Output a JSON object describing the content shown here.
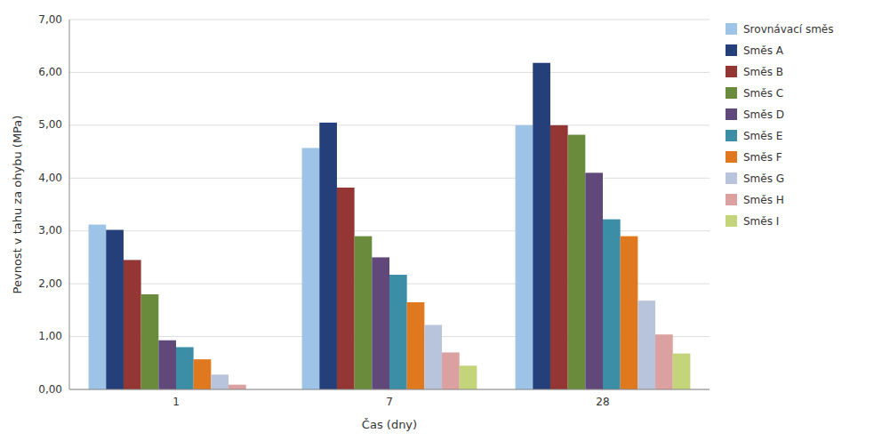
{
  "chart_data": {
    "type": "bar",
    "xlabel": "Čas (dny)",
    "ylabel": "Pevnost v tahu za ohybu (MPa)",
    "categories": [
      1,
      7,
      28
    ],
    "series": [
      {
        "name": "Srovnávací směs",
        "color": "#9DC3E6",
        "values": [
          3.12,
          4.57,
          5.0
        ]
      },
      {
        "name": "Směs A",
        "color": "#243F7A",
        "values": [
          3.02,
          5.05,
          6.18
        ]
      },
      {
        "name": "Směs B",
        "color": "#943634",
        "values": [
          2.45,
          3.82,
          5.0
        ]
      },
      {
        "name": "Směs C",
        "color": "#6A8A3C",
        "values": [
          1.8,
          2.9,
          4.82
        ]
      },
      {
        "name": "Směs D",
        "color": "#60497A",
        "values": [
          0.93,
          2.5,
          4.1
        ]
      },
      {
        "name": "Směs E",
        "color": "#3B8EA5",
        "values": [
          0.8,
          2.17,
          3.22
        ]
      },
      {
        "name": "Směs F",
        "color": "#E07820",
        "values": [
          0.57,
          1.65,
          2.9
        ]
      },
      {
        "name": "Směs G",
        "color": "#B8C4DC",
        "values": [
          0.28,
          1.22,
          1.68
        ]
      },
      {
        "name": "Směs H",
        "color": "#DBA0A0",
        "values": [
          0.09,
          0.7,
          1.04
        ]
      },
      {
        "name": "Směs I",
        "color": "#C4D47A",
        "values": [
          0.0,
          0.45,
          0.68
        ]
      }
    ],
    "ylim": [
      0.0,
      7.0
    ],
    "yticks": [
      {
        "value": 0.0,
        "label": "0,00"
      },
      {
        "value": 1.0,
        "label": "1,00"
      },
      {
        "value": 2.0,
        "label": "2,00"
      },
      {
        "value": 3.0,
        "label": "3,00"
      },
      {
        "value": 4.0,
        "label": "4,00"
      },
      {
        "value": 5.0,
        "label": "5,00"
      },
      {
        "value": 6.0,
        "label": "6,00"
      },
      {
        "value": 7.0,
        "label": "7,00"
      }
    ],
    "grid": true,
    "legend": "right"
  }
}
